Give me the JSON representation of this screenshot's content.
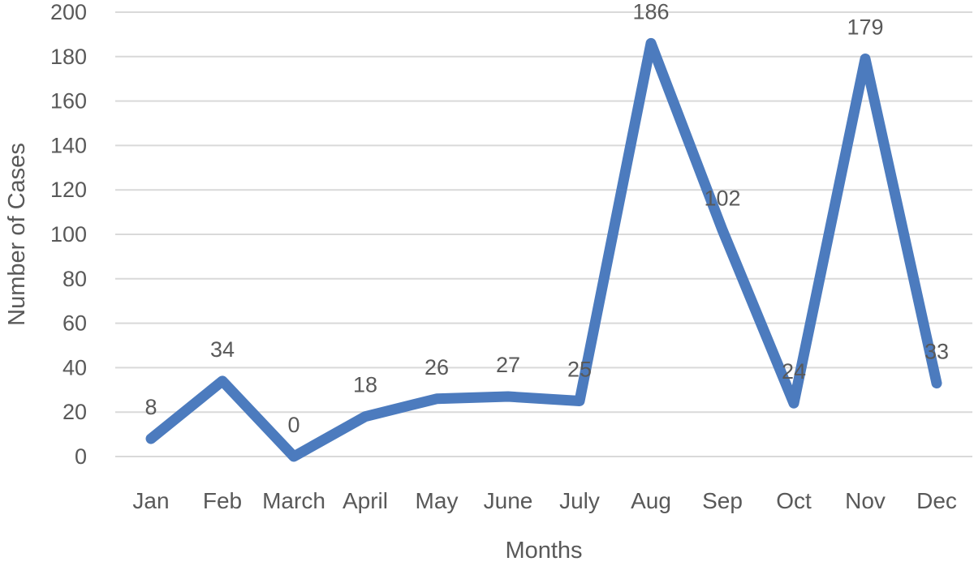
{
  "chart_data": {
    "type": "line",
    "categories": [
      "Jan",
      "Feb",
      "March",
      "April",
      "May",
      "June",
      "July",
      "Aug",
      "Sep",
      "Oct",
      "Nov",
      "Dec"
    ],
    "values": [
      8,
      34,
      0,
      18,
      26,
      27,
      25,
      186,
      102,
      24,
      179,
      33
    ],
    "data_labels": [
      "8",
      "34",
      "0",
      "18",
      "26",
      "27",
      "25",
      "186",
      "102",
      "24",
      "179",
      "33"
    ],
    "title": "",
    "xlabel": "Months",
    "ylabel": "Number of Cases",
    "ylim": [
      0,
      200
    ],
    "ytick_step": 20,
    "ytick_labels": [
      "0",
      "20",
      "40",
      "60",
      "80",
      "100",
      "120",
      "140",
      "160",
      "180",
      "200"
    ],
    "grid": true,
    "legend": "none",
    "colors": {
      "line": "#4C7BBE",
      "grid": "#D9D9D9",
      "text": "#595959",
      "background": "#FFFFFF"
    }
  }
}
